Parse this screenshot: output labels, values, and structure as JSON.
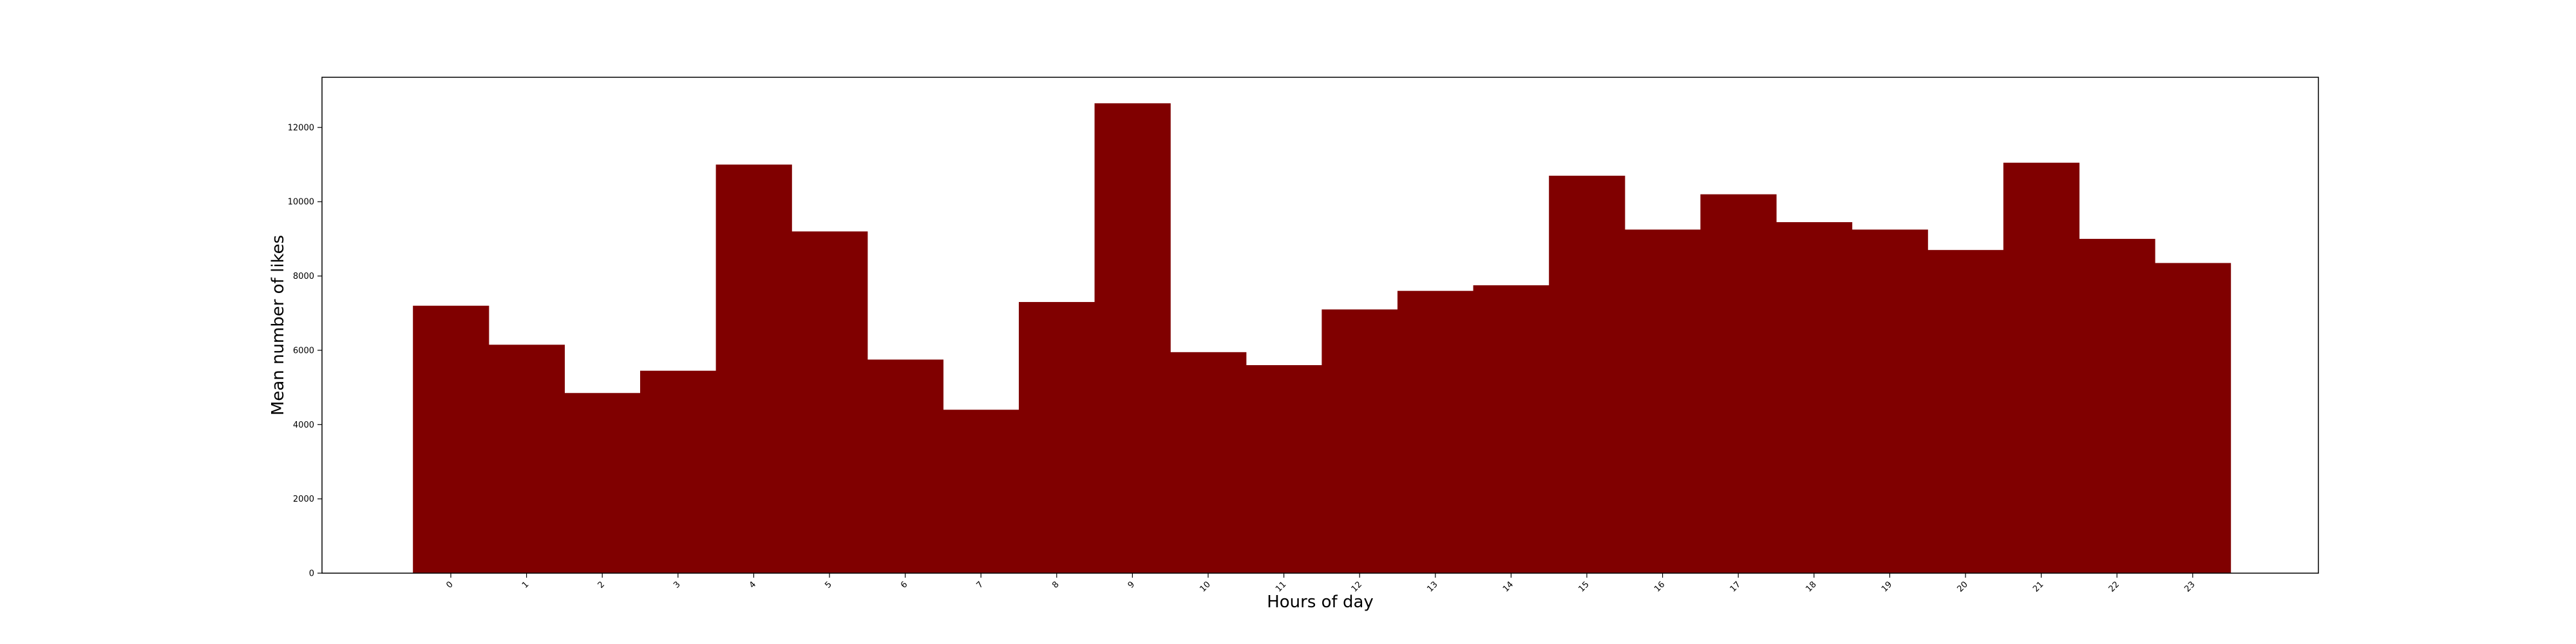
{
  "chart_data": {
    "type": "bar",
    "xlabel": "Hours of day",
    "ylabel": "Mean number of likes",
    "categories": [
      "0",
      "1",
      "2",
      "3",
      "4",
      "5",
      "6",
      "7",
      "8",
      "9",
      "10",
      "11",
      "12",
      "13",
      "14",
      "15",
      "16",
      "17",
      "18",
      "19",
      "20",
      "21",
      "22",
      "23"
    ],
    "values": [
      7200,
      6150,
      4850,
      5450,
      11000,
      9200,
      5750,
      4400,
      7300,
      12650,
      5950,
      5600,
      7100,
      7600,
      7750,
      10700,
      9250,
      10200,
      9450,
      9250,
      8700,
      11050,
      9000,
      8350
    ],
    "ylim": [
      0,
      13350
    ],
    "yticks": [
      0,
      2000,
      4000,
      6000,
      8000,
      10000,
      12000
    ],
    "ytick_labels": [
      "0",
      "2000",
      "4000",
      "6000",
      "8000",
      "10000",
      "12000"
    ],
    "bar_color": "#800000",
    "grid": false,
    "legend": "none"
  }
}
